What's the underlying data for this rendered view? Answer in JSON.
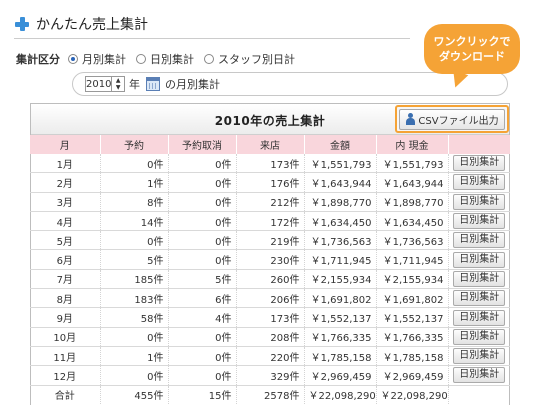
{
  "app": {
    "title": "かんたん売上集計"
  },
  "mode": {
    "label": "集計区分",
    "options": [
      {
        "label": "月別集計",
        "selected": true
      },
      {
        "label": "日別集計",
        "selected": false
      },
      {
        "label": "スタッフ別日計",
        "selected": false
      }
    ]
  },
  "year_select": {
    "value": "2010",
    "unit": "年",
    "suffix": "の月別集計"
  },
  "callout": {
    "line1": "ワンクリックで",
    "line2": "ダウンロード",
    "color": "#f5a336"
  },
  "panel": {
    "title": "2010年の売上集計",
    "csv_button": "CSVファイル出力"
  },
  "table": {
    "headers": [
      "月",
      "予約",
      "予約取消",
      "来店",
      "金額",
      "内 現金",
      ""
    ],
    "row_button": "日別集計",
    "rows": [
      [
        "1月",
        "0件",
        "0件",
        "173件",
        "￥1,551,793",
        "￥1,551,793"
      ],
      [
        "2月",
        "1件",
        "0件",
        "176件",
        "￥1,643,944",
        "￥1,643,944"
      ],
      [
        "3月",
        "8件",
        "0件",
        "212件",
        "￥1,898,770",
        "￥1,898,770"
      ],
      [
        "4月",
        "14件",
        "0件",
        "172件",
        "￥1,634,450",
        "￥1,634,450"
      ],
      [
        "5月",
        "0件",
        "0件",
        "219件",
        "￥1,736,563",
        "￥1,736,563"
      ],
      [
        "6月",
        "5件",
        "0件",
        "230件",
        "￥1,711,945",
        "￥1,711,945"
      ],
      [
        "7月",
        "185件",
        "5件",
        "260件",
        "￥2,155,934",
        "￥2,155,934"
      ],
      [
        "8月",
        "183件",
        "6件",
        "206件",
        "￥1,691,802",
        "￥1,691,802"
      ],
      [
        "9月",
        "58件",
        "4件",
        "173件",
        "￥1,552,137",
        "￥1,552,137"
      ],
      [
        "10月",
        "0件",
        "0件",
        "208件",
        "￥1,766,335",
        "￥1,766,335"
      ],
      [
        "11月",
        "1件",
        "0件",
        "220件",
        "￥1,785,158",
        "￥1,785,158"
      ],
      [
        "12月",
        "0件",
        "0件",
        "329件",
        "￥2,969,459",
        "￥2,969,459"
      ]
    ],
    "total": [
      "合計",
      "455件",
      "15件",
      "2578件",
      "￥22,098,290",
      "￥22,098,290"
    ]
  }
}
